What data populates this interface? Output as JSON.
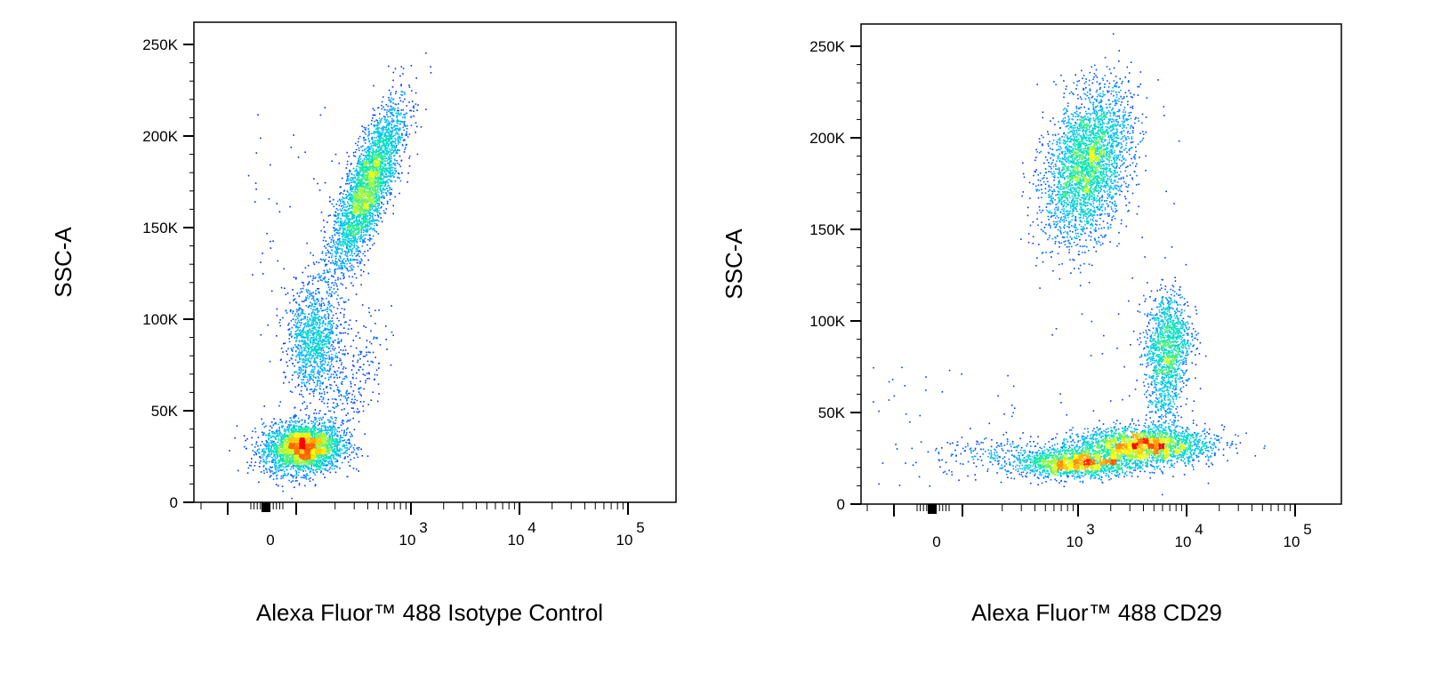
{
  "chart_data": [
    {
      "type": "scatter",
      "subtype": "flow-cytometry-density-dot-plot",
      "xlabel": "Alexa Fluor™ 488 Isotype Control",
      "ylabel": "SSC-A",
      "x_scale": "biexponential",
      "xlim": [
        -300,
        150000
      ],
      "ylim": [
        0,
        262144
      ],
      "y_ticks": [
        {
          "value": 0,
          "label": "0"
        },
        {
          "value": 50000,
          "label": "50K"
        },
        {
          "value": 100000,
          "label": "100K"
        },
        {
          "value": 150000,
          "label": "150K"
        },
        {
          "value": 200000,
          "label": "200K"
        },
        {
          "value": 250000,
          "label": "250K"
        }
      ],
      "x_ticks": [
        {
          "value": 0,
          "label": "0"
        },
        {
          "value": 1000,
          "base": "10",
          "exp": "3"
        },
        {
          "value": 10000,
          "base": "10",
          "exp": "4"
        },
        {
          "value": 100000,
          "base": "10",
          "exp": "5"
        }
      ],
      "grid": false,
      "color_scale": [
        "#0000ff",
        "#00b4ff",
        "#00e6b4",
        "#ffff00",
        "#ff0000"
      ],
      "populations": [
        {
          "x_center": 130,
          "y_center": 30000,
          "relative_density": 1.0
        },
        {
          "x_center": 150,
          "y_center": 85000,
          "relative_density": 0.45
        },
        {
          "x_center": 420,
          "y_center": 175000,
          "relative_density": 0.75
        }
      ]
    },
    {
      "type": "scatter",
      "subtype": "flow-cytometry-density-dot-plot",
      "xlabel": "Alexa Fluor™ 488  CD29",
      "ylabel": "SSC-A",
      "x_scale": "biexponential",
      "xlim": [
        -300,
        150000
      ],
      "ylim": [
        0,
        262144
      ],
      "y_ticks": [
        {
          "value": 0,
          "label": "0"
        },
        {
          "value": 50000,
          "label": "50K"
        },
        {
          "value": 100000,
          "label": "100K"
        },
        {
          "value": 150000,
          "label": "150K"
        },
        {
          "value": 200000,
          "label": "200K"
        },
        {
          "value": 250000,
          "label": "250K"
        }
      ],
      "x_ticks": [
        {
          "value": 0,
          "label": "0"
        },
        {
          "value": 1000,
          "base": "10",
          "exp": "3"
        },
        {
          "value": 10000,
          "base": "10",
          "exp": "4"
        },
        {
          "value": 100000,
          "base": "10",
          "exp": "5"
        }
      ],
      "grid": false,
      "color_scale": [
        "#0000ff",
        "#00b4ff",
        "#00e6b4",
        "#ffff00",
        "#ff0000"
      ],
      "populations": [
        {
          "x_center": 1000,
          "y_center": 22000,
          "relative_density": 0.8
        },
        {
          "x_center": 3200,
          "y_center": 32000,
          "relative_density": 1.0
        },
        {
          "x_center": 7500,
          "y_center": 90000,
          "relative_density": 0.5
        },
        {
          "x_center": 1400,
          "y_center": 170000,
          "relative_density": 0.8
        }
      ]
    }
  ]
}
